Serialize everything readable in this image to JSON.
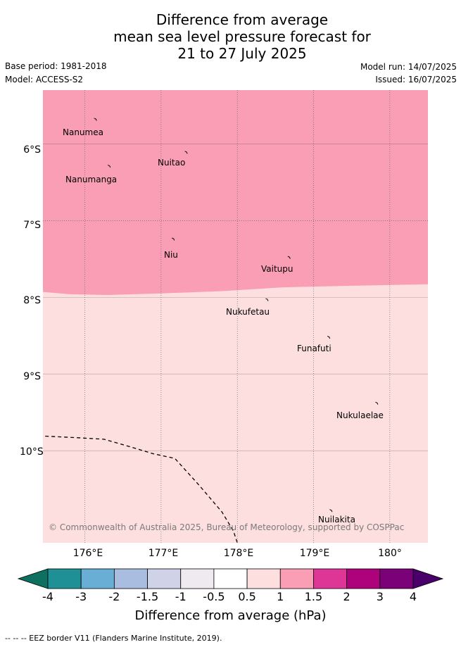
{
  "title": {
    "line1": "Difference from average",
    "line2": "mean sea level pressure forecast for",
    "line3": "21 to 27 July 2025"
  },
  "meta": {
    "base_period": "Base period: 1981-2018",
    "model": "Model: ACCESS-S2",
    "model_run": "Model run: 14/07/2025",
    "issued": "Issued: 16/07/2025"
  },
  "map": {
    "lon_range": [
      175.45,
      180.5
    ],
    "lat_range": [
      -11.2,
      -5.3
    ],
    "lat_ticks": [
      "6°S",
      "7°S",
      "8°S",
      "9°S",
      "10°S"
    ],
    "lon_ticks": [
      "176°E",
      "177°E",
      "178°E",
      "179°E",
      "180°"
    ],
    "fill_colors": {
      "0.5-1": "#fddfdf",
      "1-1.5": "#fa9eb6"
    },
    "places": [
      {
        "name": "Nanumea",
        "lon": 176.14,
        "lat": -5.68
      },
      {
        "name": "Nuitao",
        "lon": 177.33,
        "lat": -6.11
      },
      {
        "name": "Nanumanga",
        "lon": 176.32,
        "lat": -6.29
      },
      {
        "name": "Niu",
        "lon": 177.16,
        "lat": -7.24
      },
      {
        "name": "Vaitupu",
        "lon": 178.68,
        "lat": -7.48
      },
      {
        "name": "Nukufetau",
        "lon": 178.39,
        "lat": -8.03
      },
      {
        "name": "Funafuti",
        "lon": 179.2,
        "lat": -8.52
      },
      {
        "name": "Nukulaelae",
        "lon": 179.83,
        "lat": -9.38
      },
      {
        "name": "Nuilakita",
        "lon": 179.23,
        "lat": -10.78
      }
    ],
    "credit": "© Commonwealth of Australia 2025, Bureau of Meteorology, supported by COSPPac"
  },
  "colorbar": {
    "ticks": [
      "-4",
      "-3",
      "-2",
      "-1.5",
      "-1",
      "-0.5",
      "0.5",
      "1",
      "1.5",
      "2",
      "3",
      "4"
    ],
    "colors": [
      "#1f9196",
      "#68aed5",
      "#a8bddf",
      "#d0d3e8",
      "#efeaf0",
      "#ffffff",
      "#fddfdf",
      "#fa9eb6",
      "#dd3697",
      "#ad027b",
      "#7a0177"
    ],
    "under_color": "#0e7060",
    "over_color": "#4a006a",
    "label": "Difference from average (hPa)"
  },
  "footer": "--  --  -- EEZ border V11 (Flanders Marine Institute, 2019)."
}
